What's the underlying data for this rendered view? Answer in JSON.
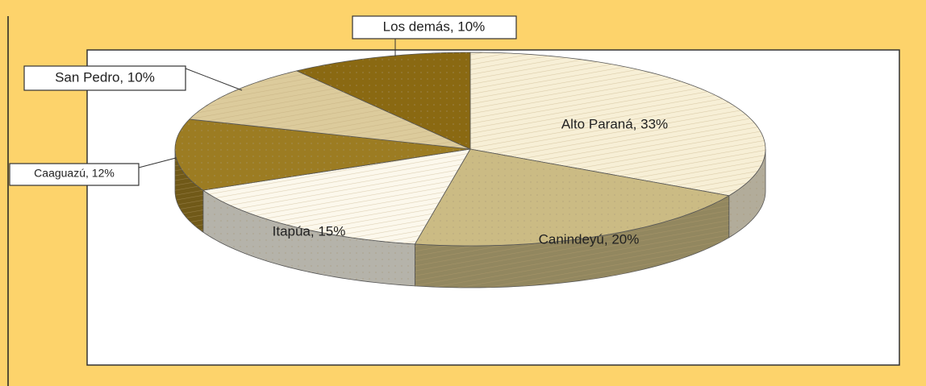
{
  "chart_data": {
    "type": "pie",
    "values": [
      33,
      20,
      15,
      12,
      10,
      10
    ],
    "value_labels": [
      "Alto Paraná, 33%",
      "Canindeyú, 20%",
      "Itapúa, 15%",
      "Caaguazú, 12%",
      "San Pedro, 10%",
      "Los demás, 10%"
    ],
    "colors": [
      "#f7efd6",
      "#cbbb84",
      "#fcf8ec",
      "#9c7c22",
      "#dccb9c",
      "#8a6912"
    ]
  }
}
